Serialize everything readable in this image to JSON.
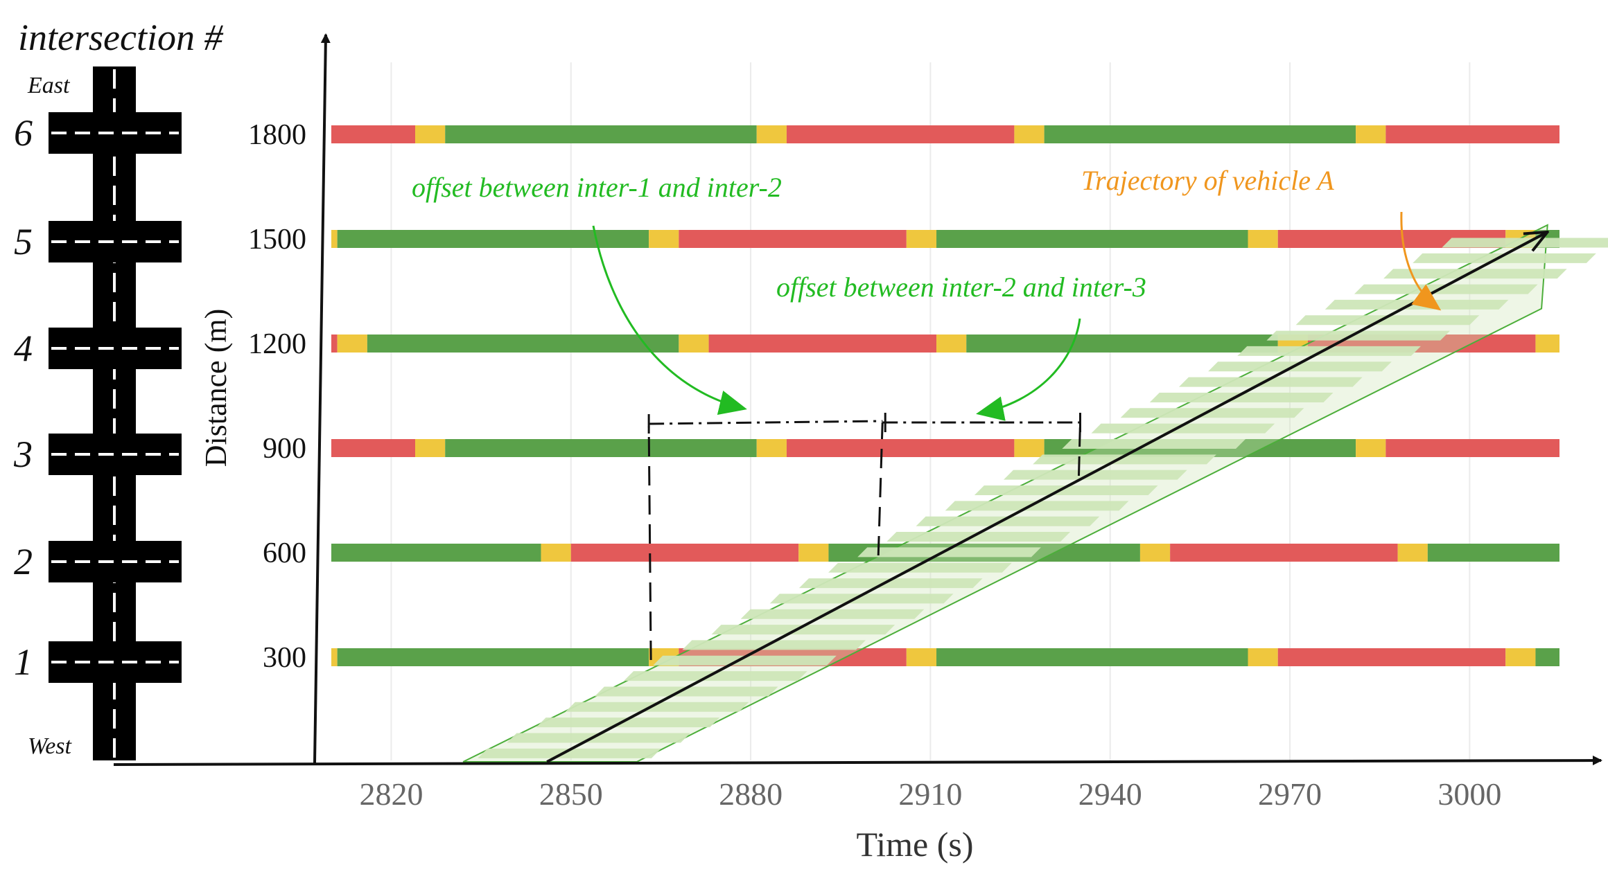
{
  "header": {
    "intersection_label": "intersection #"
  },
  "road": {
    "east_label": "East",
    "west_label": "West",
    "intersection_numbers": [
      "1",
      "2",
      "3",
      "4",
      "5",
      "6"
    ]
  },
  "axes": {
    "ylabel": "Distance (m)",
    "xlabel": "Time (s)",
    "x_ticks": [
      "2820",
      "2850",
      "2880",
      "2910",
      "2940",
      "2970",
      "3000"
    ],
    "y_ticks": [
      "300",
      "600",
      "900",
      "1200",
      "1500",
      "1800"
    ]
  },
  "annotations": {
    "offset_1_2": "offset between inter-1 and inter-2",
    "offset_2_3": "offset between inter-2 and inter-3",
    "trajectory": "Trajectory of vehicle A"
  },
  "colors": {
    "green": "#5aa14a",
    "yellow": "#efc73e",
    "red": "#e25a5a",
    "annotation_green": "#22bb22",
    "annotation_orange": "#f0961e",
    "band_fill": "#cde6b8",
    "band_stroke": "#4cae3a"
  },
  "chart_data": {
    "type": "time-space diagram",
    "xlim": [
      2810,
      3015
    ],
    "ylim": [
      0,
      1900
    ],
    "signal_phase_order": [
      "green",
      "yellow",
      "red",
      "yellow"
    ],
    "signals": [
      {
        "intersection": "1",
        "distance": 300,
        "first_green_start": 2811,
        "cycle": 100,
        "green": 52,
        "yellow": 5,
        "red": 38
      },
      {
        "intersection": "2",
        "distance": 600,
        "first_green_start": 2793,
        "cycle": 100,
        "green": 52,
        "yellow": 5,
        "red": 38
      },
      {
        "intersection": "3",
        "distance": 900,
        "first_green_start": 2829,
        "cycle": 100,
        "green": 52,
        "yellow": 5,
        "red": 38
      },
      {
        "intersection": "4",
        "distance": 1200,
        "first_green_start": 2816,
        "cycle": 100,
        "green": 52,
        "yellow": 5,
        "red": 38
      },
      {
        "intersection": "5",
        "distance": 1500,
        "first_green_start": 2811,
        "cycle": 100,
        "green": 52,
        "yellow": 5,
        "red": 38
      },
      {
        "intersection": "6",
        "distance": 1800,
        "first_green_start": 2829,
        "cycle": 100,
        "green": 52,
        "yellow": 5,
        "red": 38
      }
    ],
    "trajectory": {
      "start": [
        2846,
        0
      ],
      "end": [
        3013,
        1520
      ]
    },
    "green_band": [
      [
        2832,
        0
      ],
      [
        2861,
        0
      ],
      [
        3012,
        1300
      ],
      [
        3013,
        1540
      ]
    ],
    "offset_markers": [
      {
        "from_time": 2863,
        "to_time": 2902,
        "label_ref": "offset_1_2"
      },
      {
        "from_time": 2902,
        "to_time": 2935,
        "label_ref": "offset_2_3"
      }
    ]
  }
}
